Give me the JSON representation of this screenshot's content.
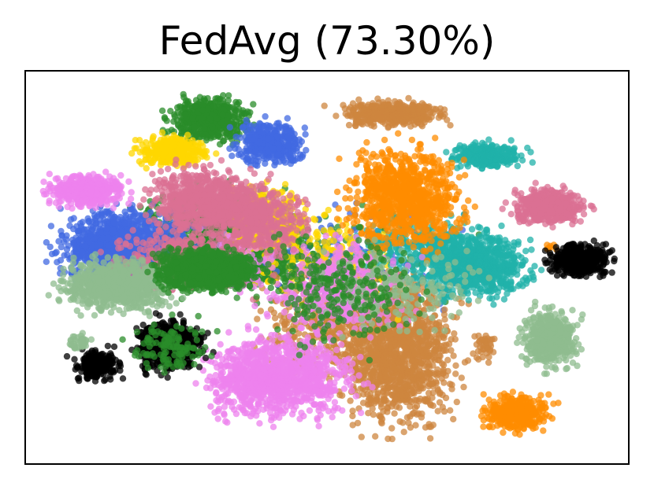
{
  "chart_data": {
    "type": "scatter",
    "title": "FedAvg (73.30%)",
    "xlabel": "",
    "ylabel": "",
    "xticks": false,
    "yticks": false,
    "grid": false,
    "legend": "none",
    "xlim": [
      0,
      100
    ],
    "ylim": [
      0,
      100
    ],
    "series": [
      {
        "color": "#2a8c2a",
        "clusters": [
          [
            30.5,
            87.5,
            7,
            6,
            500
          ],
          [
            33,
            56,
            15,
            13,
            1600
          ],
          [
            60,
            52,
            17,
            18,
            90
          ]
        ]
      },
      {
        "color": "#4169e1",
        "clusters": [
          [
            40.5,
            81.5,
            6,
            6,
            380
          ],
          [
            16.5,
            55.5,
            11.5,
            10,
            1100
          ],
          [
            58,
            52,
            20,
            18,
            110
          ]
        ]
      },
      {
        "color": "#cd853f",
        "clusters": [
          [
            61,
            89,
            9,
            3.5,
            420
          ],
          [
            62,
            29,
            10,
            20,
            1300
          ],
          [
            50,
            35,
            12,
            13,
            350
          ],
          [
            76,
            30,
            2,
            4,
            40
          ]
        ]
      },
      {
        "color": "#ffd700",
        "clusters": [
          [
            24.5,
            79.5,
            6,
            4,
            380
          ],
          [
            40,
            62,
            7,
            10,
            360
          ],
          [
            50,
            52,
            12,
            12,
            200
          ]
        ]
      },
      {
        "color": "#20b2aa",
        "clusters": [
          [
            76.5,
            78.5,
            6,
            3.5,
            300
          ],
          [
            74,
            51,
            10,
            9,
            850
          ],
          [
            64,
            56,
            10,
            8,
            200
          ]
        ]
      },
      {
        "color": "#ee82ee",
        "clusters": [
          [
            10.5,
            69.5,
            7,
            4.5,
            420
          ],
          [
            42,
            22,
            13,
            11,
            1100
          ],
          [
            52,
            45,
            12,
            13,
            450
          ],
          [
            35,
            52,
            8,
            8,
            120
          ]
        ]
      },
      {
        "color": "#db7093",
        "clusters": [
          [
            30,
            67,
            10,
            9,
            700
          ],
          [
            39,
            62,
            9,
            9,
            400
          ],
          [
            86.5,
            65.5,
            6.5,
            5,
            480
          ],
          [
            26,
            52,
            12,
            8,
            400
          ]
        ]
      },
      {
        "color": "#ff8c00",
        "clusters": [
          [
            63,
            68,
            10,
            14,
            900
          ],
          [
            81.5,
            13,
            6,
            5,
            350
          ],
          [
            87,
            55,
            1,
            1,
            8
          ]
        ]
      },
      {
        "color": "#000000",
        "clusters": [
          [
            92,
            52,
            5.5,
            4.5,
            450
          ],
          [
            24,
            30,
            6,
            7,
            600
          ],
          [
            12,
            25,
            4,
            4,
            200
          ]
        ]
      },
      {
        "color": "#8fbc8f",
        "clusters": [
          [
            15.5,
            45.5,
            10,
            7,
            800
          ],
          [
            87,
            32,
            5,
            8,
            450
          ],
          [
            9,
            31,
            2,
            2,
            40
          ],
          [
            62,
            45,
            14,
            12,
            180
          ]
        ]
      },
      {
        "color": "#2a8c2a",
        "clusters": [
          [
            30,
            49.5,
            8.5,
            5.5,
            1200
          ],
          [
            24,
            30,
            7,
            7,
            120
          ],
          [
            52,
            45,
            14,
            16,
            250
          ]
        ]
      }
    ]
  }
}
